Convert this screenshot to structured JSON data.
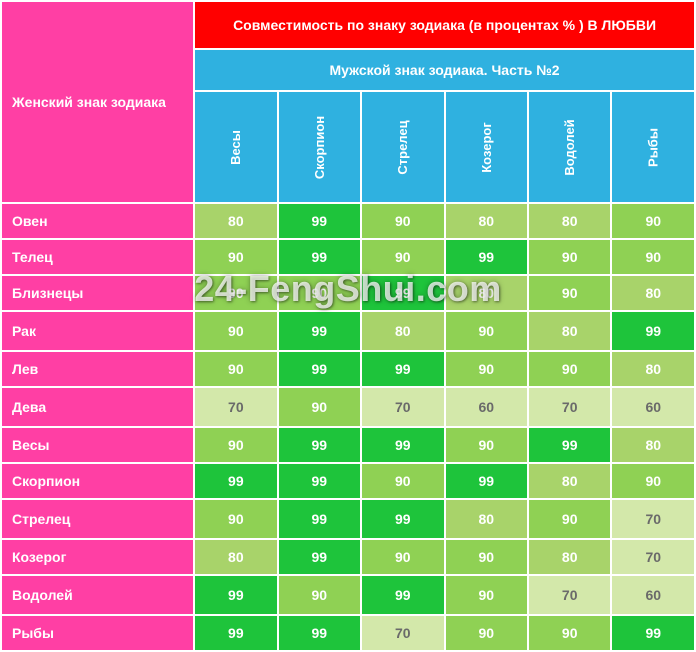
{
  "header": {
    "corner": "Женский знак зодиака",
    "title": "Совместимость по знаку зодиака (в процентах % ) В ЛЮБВИ",
    "subtitle": "Мужской знак зодиака. Часть №2"
  },
  "columns": [
    "Весы",
    "Скорпион",
    "Стрелец",
    "Козерог",
    "Водолей",
    "Рыбы"
  ],
  "rows": [
    {
      "label": "Овен",
      "sep": false,
      "cells": [
        80,
        99,
        90,
        80,
        80,
        90
      ]
    },
    {
      "label": "Телец",
      "sep": false,
      "cells": [
        90,
        99,
        90,
        99,
        90,
        90
      ]
    },
    {
      "label": "Близнецы",
      "sep": false,
      "cells": [
        90,
        90,
        99,
        80,
        90,
        80
      ]
    },
    {
      "label": "Рак",
      "sep": true,
      "cells": [
        90,
        99,
        80,
        90,
        80,
        99
      ]
    },
    {
      "label": "Лев",
      "sep": false,
      "cells": [
        90,
        99,
        99,
        90,
        90,
        80
      ]
    },
    {
      "label": "Дева",
      "sep": true,
      "cells": [
        70,
        90,
        70,
        60,
        70,
        60
      ]
    },
    {
      "label": "Весы",
      "sep": false,
      "cells": [
        90,
        99,
        99,
        90,
        99,
        80
      ]
    },
    {
      "label": "Скорпион",
      "sep": false,
      "cells": [
        99,
        99,
        90,
        99,
        80,
        90
      ]
    },
    {
      "label": "Стрелец",
      "sep": true,
      "cells": [
        90,
        99,
        99,
        80,
        90,
        70
      ]
    },
    {
      "label": "Козерог",
      "sep": false,
      "cells": [
        80,
        99,
        90,
        90,
        80,
        70
      ]
    },
    {
      "label": "Водолей",
      "sep": true,
      "cells": [
        99,
        90,
        99,
        90,
        70,
        60
      ]
    },
    {
      "label": "Рыбы",
      "sep": false,
      "cells": [
        99,
        99,
        70,
        90,
        90,
        99
      ]
    }
  ],
  "watermark": "24-FengShui.com",
  "colors": {
    "99": "#1ec43b",
    "90": "#8fd154",
    "80": "#a8d36a",
    "70": "#d3e8aa",
    "60": "#d3e8aa"
  },
  "col_widths": {
    "first": 190,
    "data": 81
  }
}
